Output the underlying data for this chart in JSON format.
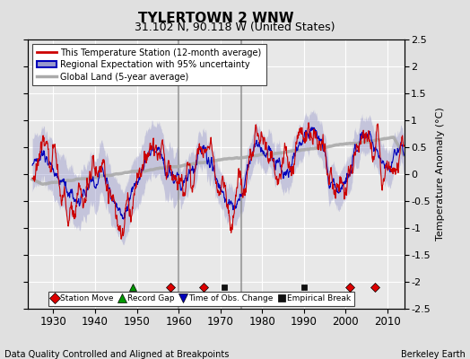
{
  "title": "TYLERTOWN 2 WNW",
  "subtitle": "31.102 N, 90.118 W (United States)",
  "footer_left": "Data Quality Controlled and Aligned at Breakpoints",
  "footer_right": "Berkeley Earth",
  "xlim": [
    1924,
    2014
  ],
  "ylim": [
    -2.5,
    2.5
  ],
  "yticks_right": [
    -2.5,
    -2,
    -1.5,
    -1,
    -0.5,
    0,
    0.5,
    1,
    1.5,
    2,
    2.5
  ],
  "ytick_labels_right": [
    "-2.5",
    "-2",
    "-1.5",
    "-1",
    "-0.5",
    "0",
    "0.5",
    "1",
    "1.5",
    "2",
    "2.5"
  ],
  "xticks": [
    1930,
    1940,
    1950,
    1960,
    1970,
    1980,
    1990,
    2000,
    2010
  ],
  "ylabel": "Temperature Anomaly (°C)",
  "station_move_years": [
    1958,
    1966,
    2001,
    2007
  ],
  "record_gap_years": [
    1949
  ],
  "obs_change_years": [],
  "empirical_break_years": [
    1971,
    1990
  ],
  "vline_gray_years": [
    1960,
    1975
  ],
  "background_color": "#e0e0e0",
  "plot_bg_color": "#e8e8e8",
  "grid_color": "#ffffff",
  "shade_color": "#9999cc",
  "line_red": "#cc0000",
  "line_blue": "#0000bb",
  "line_gray": "#aaaaaa"
}
